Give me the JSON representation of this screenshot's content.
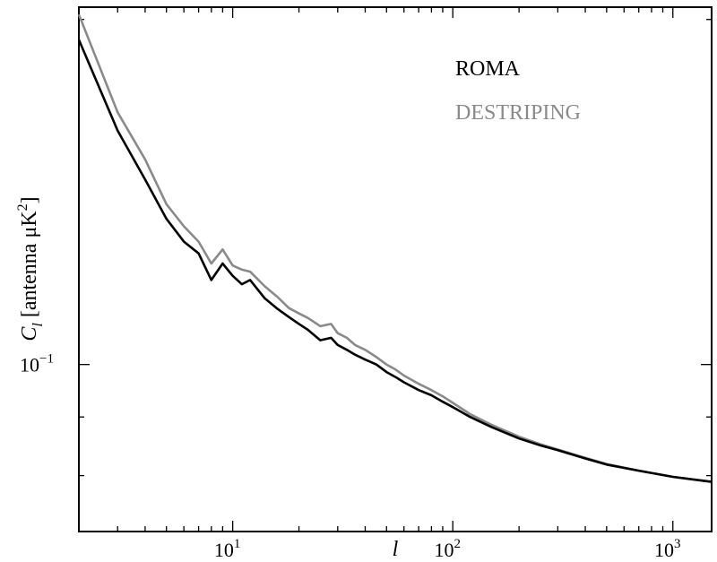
{
  "chart_data": {
    "type": "line",
    "title": "",
    "xlabel": "l",
    "ylabel": "C_l [antenna μK^2]",
    "ylabel_parts": {
      "main": "C",
      "sub": "l",
      "unit_open": " [antenna μK",
      "unit_exp": "2",
      "unit_close": "]"
    },
    "x_scale": "log",
    "y_scale": "log",
    "xlim": [
      2,
      1500
    ],
    "ylim": [
      0.0715,
      0.205
    ],
    "grid": false,
    "legend_placement": "top-right",
    "x_ticks": [
      {
        "base": "10",
        "exp": "1",
        "value": 10
      },
      {
        "base": "10",
        "exp": "2",
        "value": 100
      },
      {
        "base": "10",
        "exp": "3",
        "value": 1000
      }
    ],
    "y_ticks": [
      {
        "base": "10",
        "exp": "−1",
        "value": 0.1
      }
    ],
    "series": [
      {
        "name": "ROMA",
        "color": "#000000",
        "x": [
          2,
          3,
          4,
          5,
          6,
          7,
          8,
          9,
          10,
          11,
          12,
          14,
          16,
          18,
          20,
          22,
          25,
          28,
          30,
          33,
          36,
          40,
          45,
          50,
          55,
          60,
          70,
          80,
          90,
          100,
          120,
          150,
          200,
          250,
          300,
          400,
          500,
          700,
          1000,
          1500
        ],
        "y": [
          0.192,
          0.16,
          0.145,
          0.134,
          0.128,
          0.125,
          0.1185,
          0.1225,
          0.1195,
          0.1175,
          0.1185,
          0.1142,
          0.1118,
          0.11,
          0.1085,
          0.1072,
          0.105,
          0.1055,
          0.104,
          0.103,
          0.102,
          0.101,
          0.1,
          0.0985,
          0.0975,
          0.0965,
          0.095,
          0.094,
          0.0928,
          0.0918,
          0.09,
          0.0882,
          0.0862,
          0.085,
          0.0842,
          0.0828,
          0.0818,
          0.0808,
          0.0798,
          0.079
        ]
      },
      {
        "name": "DESTRIPING",
        "color": "#8a8a8a",
        "x": [
          2,
          3,
          4,
          5,
          6,
          7,
          8,
          9,
          10,
          11,
          12,
          14,
          16,
          18,
          20,
          22,
          25,
          28,
          30,
          33,
          36,
          40,
          45,
          50,
          55,
          60,
          70,
          80,
          90,
          100,
          120,
          150,
          200,
          250,
          300,
          400,
          500,
          700,
          1000,
          1500
        ],
        "y": [
          0.202,
          0.166,
          0.151,
          0.138,
          0.132,
          0.128,
          0.1225,
          0.126,
          0.122,
          0.121,
          0.1205,
          0.117,
          0.1145,
          0.112,
          0.1108,
          0.1098,
          0.108,
          0.1085,
          0.1065,
          0.1055,
          0.104,
          0.103,
          0.1015,
          0.1,
          0.099,
          0.0978,
          0.0962,
          0.095,
          0.0938,
          0.0926,
          0.0905,
          0.0886,
          0.0865,
          0.0852,
          0.0843,
          0.0829,
          0.0819,
          0.0808,
          0.0798,
          0.079
        ]
      }
    ]
  }
}
